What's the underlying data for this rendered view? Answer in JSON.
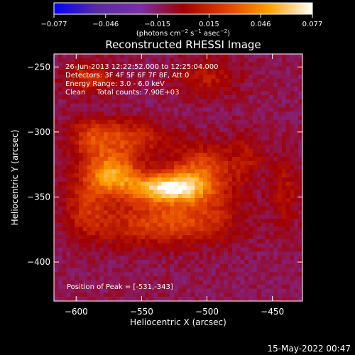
{
  "colors": {
    "background": "#000000",
    "foreground": "#ffffff",
    "colormap_stops": [
      "#0000ff",
      "#5a2aa0",
      "#7a2ea8",
      "#a00000",
      "#e04000",
      "#ffa000",
      "#ffffff"
    ]
  },
  "colorbar": {
    "ticks": [
      "−0.077",
      "−0.046",
      "−0.015",
      "0.015",
      "0.046",
      "0.077"
    ],
    "unit": "(photons cm",
    "unit_sup1": "−2",
    "unit_mid": " s",
    "unit_sup2": "−1",
    "unit_mid2": " asec",
    "unit_sup3": "−2",
    "unit_end": ")"
  },
  "chart_data": {
    "type": "heatmap",
    "title": "Reconstructed RHESSI Image",
    "xlabel": "Heliocentric X (arcsec)",
    "ylabel": "Heliocentric Y (arcsec)",
    "xlim": [
      -617,
      -427
    ],
    "ylim": [
      -430,
      -240
    ],
    "x_ticks": [
      -600,
      -550,
      -500,
      -450
    ],
    "y_ticks": [
      -250,
      -300,
      -350,
      -400
    ],
    "x_tick_labels": [
      "−600",
      "−550",
      "−500",
      "−450"
    ],
    "y_tick_labels": [
      "−250",
      "−300",
      "−350",
      "−400"
    ],
    "value_range": [
      -0.077,
      0.077
    ],
    "peak": [
      -531,
      -343
    ],
    "sources": [
      {
        "x": -572,
        "y": -332,
        "amp": 0.06,
        "sx": 14,
        "sy": 11
      },
      {
        "x": -531,
        "y": -343,
        "amp": 0.077,
        "sx": 20,
        "sy": 8
      },
      {
        "x": -505,
        "y": -330,
        "amp": 0.04,
        "sx": 16,
        "sy": 14
      },
      {
        "x": -565,
        "y": -305,
        "amp": 0.035,
        "sx": 22,
        "sy": 10
      },
      {
        "x": -545,
        "y": -370,
        "amp": 0.03,
        "sx": 30,
        "sy": 12
      },
      {
        "x": -505,
        "y": -365,
        "amp": 0.022,
        "sx": 25,
        "sy": 14
      },
      {
        "x": -592,
        "y": -355,
        "amp": 0.025,
        "sx": 12,
        "sy": 18
      },
      {
        "x": -590,
        "y": -258,
        "amp": 0.028,
        "sx": 14,
        "sy": 8
      },
      {
        "x": -500,
        "y": -258,
        "amp": 0.02,
        "sx": 18,
        "sy": 10
      },
      {
        "x": -440,
        "y": -345,
        "amp": 0.018,
        "sx": 8,
        "sy": 20
      },
      {
        "x": -590,
        "y": -305,
        "amp": 0.02,
        "sx": 10,
        "sy": 12
      },
      {
        "x": -470,
        "y": -320,
        "amp": 0.018,
        "sx": 10,
        "sy": 14
      }
    ],
    "annotations": [
      "26-Jun-2013 12:22:52.000 to 12:25:04.000",
      "Detectors: 3F 4F 5F 6F 7F 8F, Att 0",
      "Energy Range: 3.0 - 6.0 keV",
      "Clean     Total counts: 7.90E+03",
      "Position of Peak = [-531,-343]"
    ]
  },
  "timestamp": "15-May-2022 00:47"
}
